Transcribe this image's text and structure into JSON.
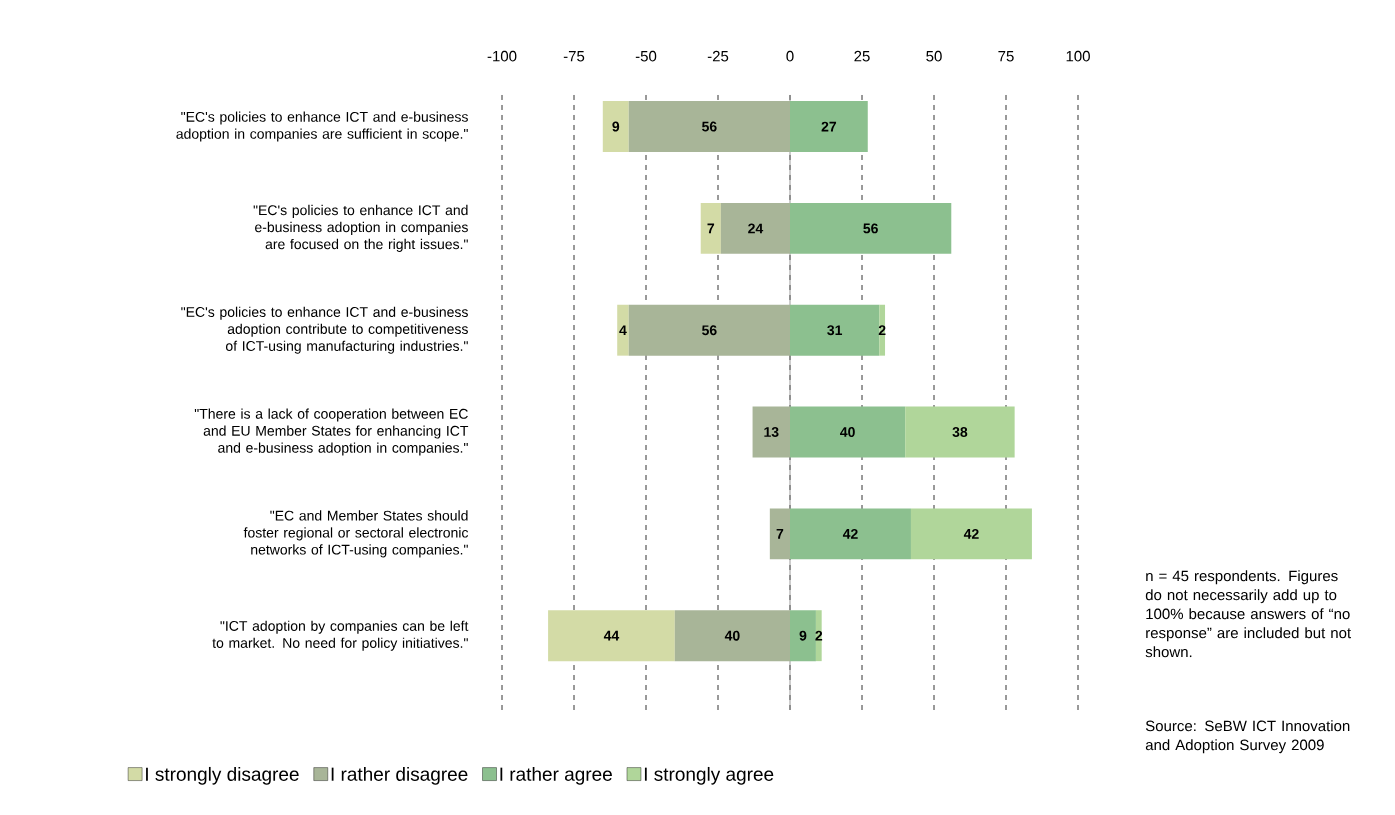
{
  "chart_data": {
    "type": "bar",
    "orientation": "horizontal",
    "categories": [
      "\"EC's policies to enhance ICT and e-business adoption in companies are sufficient in scope.\"",
      "\"EC's policies to enhance ICT and e-business adoption in companies are focused on the right issues.\"",
      "\"EC's policies to enhance ICT and e-business adoption contribute to competitiveness of ICT-using manufacturing industries.\"",
      "\"There is a lack of cooperation between EC and EU Member States for enhancing ICT and e-business adoption in companies.\"",
      "\"EC and Member States should foster regional or sectoral electronic networks of ICT-using companies.\"",
      "\"ICT adoption by companies can be left to market. No need for policy initiatives.\""
    ],
    "series": [
      {
        "name": "I strongly disagree",
        "color": "#d3dba6",
        "values": [
          9,
          7,
          4,
          null,
          null,
          44
        ],
        "base": [
          -65,
          -31,
          -60,
          null,
          null,
          -84
        ]
      },
      {
        "name": "I rather disagree",
        "color": "#a8b598",
        "values": [
          56,
          24,
          56,
          13,
          7,
          40
        ],
        "base": [
          -56,
          -24,
          -56,
          -13,
          -7,
          -40
        ]
      },
      {
        "name": "I rather agree",
        "color": "#8cc08f",
        "values": [
          27,
          56,
          31,
          40,
          42,
          9
        ],
        "base": [
          0,
          0,
          0,
          0,
          0,
          0
        ]
      },
      {
        "name": "I strongly agree",
        "color": "#b0d69a",
        "values": [
          null,
          null,
          2,
          38,
          42,
          2
        ],
        "base": [
          null,
          null,
          31,
          40,
          42,
          9
        ]
      }
    ],
    "data_labels": true,
    "xlim": [
      -100,
      100
    ],
    "xticks": [
      -100,
      -75,
      -50,
      -25,
      0,
      25,
      50,
      75,
      100
    ],
    "grid": "x",
    "legend": "bottom",
    "ref_lines": [
      {
        "axis": "x",
        "value": 0,
        "color": "#808080",
        "line_style": "solid"
      }
    ],
    "annotations": [
      "n = 45 respondents. Figures do not necessarily add up to 100% because answers of “no response” are included but not shown.",
      "Source: SeBW ICT Innovation and Adoption Survey 2009"
    ]
  }
}
